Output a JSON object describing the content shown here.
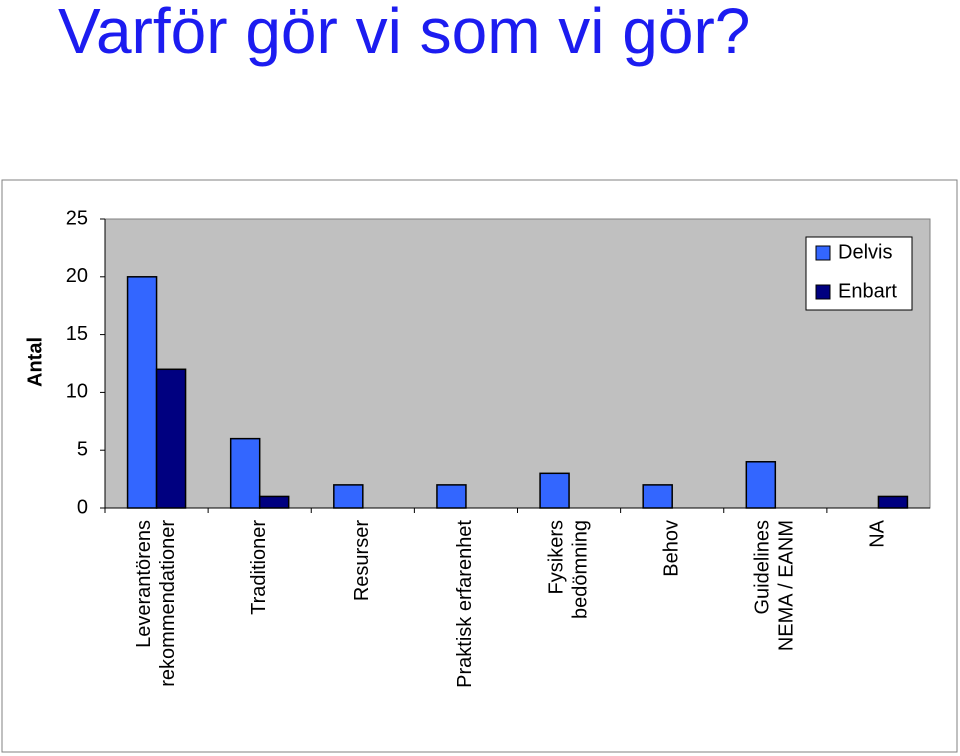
{
  "chart_data": {
    "type": "bar",
    "title": "Varför gör vi som vi gör?",
    "y_label": "Antal",
    "categories": [
      [
        "Leverantörens",
        "rekommendationer"
      ],
      [
        "Traditioner"
      ],
      [
        "Resurser"
      ],
      [
        "Praktisk erfarenhet"
      ],
      [
        "Fysikers",
        "bedömning"
      ],
      [
        "Behov"
      ],
      [
        "Guidelines",
        "NEMA / EANM"
      ],
      [
        "NA"
      ]
    ],
    "series": [
      {
        "name": "Delvis",
        "color": "#3366ff",
        "values": [
          20,
          6,
          2,
          2,
          3,
          2,
          4,
          0
        ]
      },
      {
        "name": "Enbart",
        "color": "#000080",
        "values": [
          12,
          1,
          0,
          0,
          0,
          0,
          0,
          1
        ]
      }
    ],
    "ylim": [
      0,
      25
    ],
    "yticks": [
      0,
      5,
      10,
      15,
      20,
      25
    ],
    "grid": false,
    "legend": "top-right",
    "plot_background": "#c0c0c0"
  }
}
